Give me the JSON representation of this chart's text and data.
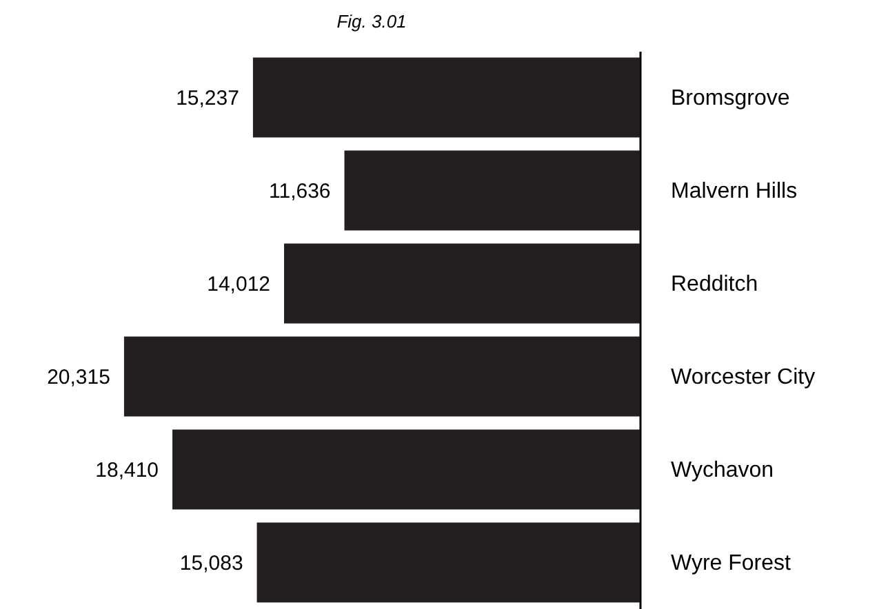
{
  "chart_data": {
    "type": "bar",
    "orientation": "horizontal",
    "title": "Fig. 3.01",
    "categories": [
      "Bromsgrove",
      "Malvern Hills",
      "Redditch",
      "Worcester City",
      "Wychavon",
      "Wyre Forest"
    ],
    "values": [
      15237,
      11636,
      14012,
      20315,
      18410,
      15083
    ],
    "value_labels": [
      "15,237",
      "11,636",
      "14,012",
      "20,315",
      "18,410",
      "15,083"
    ],
    "color": "#231f20",
    "tick_labels": "y"
  }
}
